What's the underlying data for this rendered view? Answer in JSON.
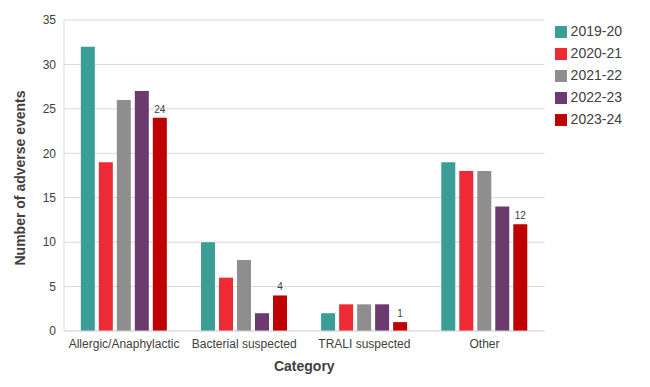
{
  "chart_data": {
    "type": "bar",
    "x_label": "Category",
    "y_label": "Number of adverse events",
    "categories": [
      "Allergic/Anaphylactic",
      "Bacterial suspected",
      "TRALI suspected",
      "Other"
    ],
    "series": [
      {
        "name": "2019-20",
        "color": "#3a9e96",
        "values": [
          32,
          10,
          2,
          19
        ]
      },
      {
        "name": "2020-21",
        "color": "#ee2a35",
        "values": [
          19,
          6,
          3,
          18
        ]
      },
      {
        "name": "2021-22",
        "color": "#8e8e8e",
        "values": [
          26,
          8,
          3,
          18
        ]
      },
      {
        "name": "2022-23",
        "color": "#6b3a6e",
        "values": [
          27,
          2,
          3,
          14
        ]
      },
      {
        "name": "2023-24",
        "color": "#c00000",
        "values": [
          24,
          4,
          1,
          12
        ],
        "data_labels": true
      }
    ],
    "ylim": [
      0,
      35
    ],
    "yticks": [
      0,
      5,
      10,
      15,
      20,
      25,
      30,
      35
    ],
    "grid": true,
    "legend": "upper right"
  }
}
